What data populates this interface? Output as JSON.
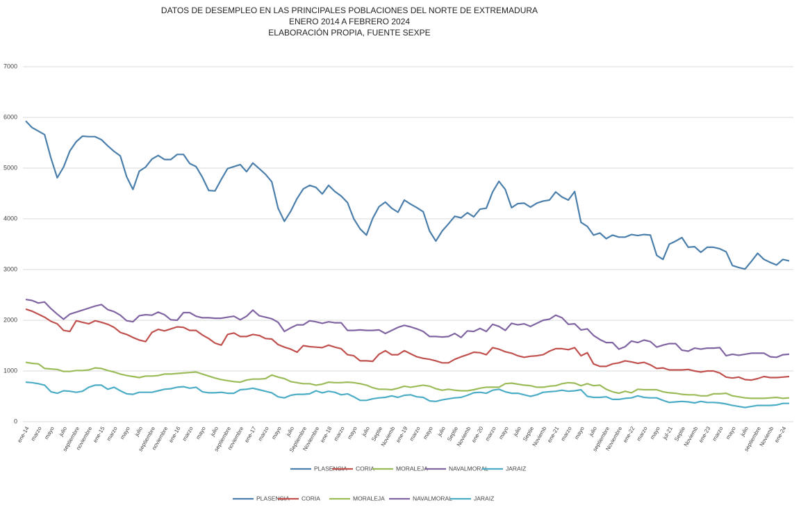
{
  "chart_data": {
    "type": "line",
    "title": "DATOS DE DESEMPLEO EN LAS PRINCIPALES POBLACIONES DEL NORTE DE EXTREMADURA",
    "subtitle": "ENERO 2014 A  FEBRERO  2024",
    "source": "ELABORACIÓN PROPIA, FUENTE SEXPE",
    "categories": [
      "ene-14",
      null,
      "marzo",
      null,
      "mayo",
      null,
      "julio",
      null,
      "septiembre",
      null,
      "noviembre",
      null,
      "ene-15",
      null,
      "marzo",
      null,
      "mayo",
      null,
      "julio",
      null,
      "septiembre",
      null,
      "noviembre",
      null,
      "ene-16",
      null,
      "marzo",
      null,
      "mayo",
      null,
      "julio",
      null,
      "septiembre",
      null,
      "noviembre",
      null,
      "ene-17",
      null,
      "marzo",
      null,
      "mayo",
      null,
      "julio",
      null,
      "Septiembre",
      null,
      "Noviembre",
      null,
      "ene-18",
      null,
      "marzo",
      null,
      "mayo",
      null,
      "julio",
      null,
      "Septie",
      null,
      "Noviemb",
      null,
      "ene-19",
      null,
      "marzo",
      null,
      "mayo",
      null,
      "julio",
      null,
      "Septie",
      null,
      "Noviemb",
      null,
      "ene-20",
      null,
      "marzo",
      null,
      "mayo",
      null,
      "julio",
      null,
      "Septie",
      null,
      "Noviemb",
      null,
      "ene-21",
      null,
      "marzo",
      null,
      "mayo",
      null,
      "julio",
      null,
      "septiembre",
      null,
      "Noviembre",
      null,
      "ene-22",
      null,
      "marzo",
      null,
      "mayo",
      null,
      "jul-21",
      null,
      "Septie",
      null,
      "Noviemb",
      null,
      "ene-23",
      null,
      "marzo",
      null,
      "mayo",
      null,
      "julio",
      null,
      "septiembre",
      null,
      "Noviemb",
      null,
      "ene-24",
      null
    ],
    "series": [
      {
        "name": "PLASENCIA",
        "color": "#4a7eab",
        "values": [
          5930,
          5800,
          5730,
          5660,
          5200,
          4810,
          5020,
          5340,
          5520,
          5630,
          5620,
          5620,
          5560,
          5440,
          5330,
          5240,
          4830,
          4580,
          4940,
          5020,
          5180,
          5250,
          5170,
          5170,
          5270,
          5270,
          5090,
          5030,
          4820,
          4560,
          4550,
          4780,
          4990,
          5030,
          5070,
          4930,
          5100,
          4990,
          4880,
          4730,
          4210,
          3950,
          4150,
          4400,
          4590,
          4660,
          4620,
          4490,
          4660,
          4540,
          4450,
          4320,
          4000,
          3800,
          3680,
          4010,
          4240,
          4330,
          4210,
          4130,
          4370,
          4290,
          4220,
          4140,
          3760,
          3560,
          3760,
          3900,
          4050,
          4020,
          4120,
          4040,
          4190,
          4210,
          4530,
          4740,
          4580,
          4220,
          4300,
          4310,
          4230,
          4310,
          4350,
          4370,
          4530,
          4430,
          4370,
          4540,
          3930,
          3850,
          3680,
          3720,
          3610,
          3680,
          3640,
          3640,
          3690,
          3670,
          3690,
          3680,
          3280,
          3200,
          3500,
          3560,
          3630,
          3440,
          3450,
          3340,
          3440,
          3440,
          3410,
          3350,
          3080,
          3040,
          3010,
          3160,
          3320,
          3200,
          3140,
          3090,
          3200,
          3170
        ]
      },
      {
        "name": "CORIA",
        "color": "#c0504d",
        "values": [
          2220,
          2180,
          2120,
          2060,
          1980,
          1930,
          1800,
          1780,
          1990,
          1960,
          1930,
          1990,
          1960,
          1920,
          1860,
          1760,
          1720,
          1660,
          1610,
          1580,
          1760,
          1820,
          1790,
          1830,
          1870,
          1860,
          1800,
          1800,
          1710,
          1640,
          1550,
          1510,
          1720,
          1750,
          1680,
          1680,
          1720,
          1700,
          1640,
          1630,
          1520,
          1470,
          1430,
          1370,
          1500,
          1480,
          1470,
          1460,
          1510,
          1470,
          1440,
          1320,
          1300,
          1200,
          1200,
          1190,
          1330,
          1400,
          1320,
          1320,
          1400,
          1340,
          1280,
          1250,
          1230,
          1200,
          1160,
          1160,
          1230,
          1280,
          1320,
          1370,
          1360,
          1320,
          1460,
          1430,
          1380,
          1350,
          1300,
          1270,
          1290,
          1300,
          1320,
          1390,
          1440,
          1440,
          1420,
          1460,
          1300,
          1360,
          1140,
          1090,
          1090,
          1140,
          1160,
          1200,
          1180,
          1150,
          1170,
          1120,
          1050,
          1060,
          1020,
          1020,
          1020,
          1030,
          1000,
          980,
          1000,
          1000,
          960,
          880,
          860,
          880,
          830,
          820,
          850,
          890,
          870,
          870,
          880,
          890
        ]
      },
      {
        "name": "MORALEJA",
        "color": "#9bbb59",
        "values": [
          1170,
          1150,
          1140,
          1050,
          1040,
          1030,
          990,
          990,
          1010,
          1010,
          1020,
          1060,
          1050,
          1010,
          980,
          940,
          910,
          890,
          870,
          900,
          900,
          910,
          940,
          940,
          950,
          960,
          970,
          980,
          940,
          900,
          860,
          830,
          810,
          790,
          780,
          820,
          840,
          840,
          850,
          920,
          880,
          850,
          790,
          770,
          750,
          750,
          720,
          740,
          780,
          770,
          770,
          780,
          770,
          750,
          720,
          670,
          640,
          640,
          630,
          660,
          700,
          680,
          700,
          720,
          700,
          650,
          620,
          640,
          620,
          610,
          610,
          630,
          660,
          680,
          680,
          680,
          750,
          760,
          740,
          720,
          710,
          680,
          680,
          700,
          710,
          750,
          770,
          760,
          710,
          750,
          710,
          720,
          640,
          590,
          560,
          600,
          570,
          640,
          630,
          630,
          630,
          590,
          570,
          560,
          540,
          530,
          530,
          510,
          510,
          550,
          550,
          560,
          510,
          490,
          470,
          460,
          460,
          460,
          470,
          480,
          460,
          470
        ]
      },
      {
        "name": "NAVALMORAL",
        "color": "#8064a2",
        "values": [
          2410,
          2390,
          2340,
          2360,
          2230,
          2120,
          2020,
          2120,
          2160,
          2200,
          2240,
          2280,
          2310,
          2210,
          2170,
          2100,
          1990,
          1970,
          2090,
          2110,
          2100,
          2160,
          2110,
          2010,
          2000,
          2150,
          2150,
          2080,
          2050,
          2050,
          2040,
          2040,
          2060,
          2080,
          2010,
          2080,
          2200,
          2090,
          2060,
          2030,
          1960,
          1780,
          1850,
          1910,
          1910,
          1990,
          1970,
          1940,
          1970,
          1950,
          1950,
          1800,
          1800,
          1810,
          1800,
          1800,
          1810,
          1740,
          1800,
          1860,
          1900,
          1870,
          1830,
          1780,
          1680,
          1680,
          1670,
          1680,
          1740,
          1660,
          1790,
          1780,
          1840,
          1780,
          1920,
          1880,
          1800,
          1940,
          1910,
          1930,
          1880,
          1940,
          2000,
          2020,
          2100,
          2050,
          1920,
          1930,
          1810,
          1830,
          1700,
          1620,
          1560,
          1560,
          1430,
          1480,
          1590,
          1560,
          1610,
          1580,
          1470,
          1510,
          1540,
          1540,
          1410,
          1390,
          1450,
          1430,
          1450,
          1450,
          1460,
          1300,
          1330,
          1310,
          1330,
          1350,
          1350,
          1350,
          1280,
          1270,
          1320,
          1330
        ]
      },
      {
        "name": "JARAIZ",
        "color": "#4bacc6",
        "values": [
          780,
          770,
          750,
          720,
          590,
          560,
          610,
          600,
          580,
          600,
          680,
          720,
          720,
          640,
          680,
          610,
          550,
          540,
          580,
          580,
          580,
          610,
          640,
          650,
          680,
          690,
          660,
          680,
          590,
          570,
          570,
          580,
          560,
          560,
          630,
          640,
          660,
          630,
          600,
          570,
          490,
          470,
          520,
          540,
          540,
          550,
          610,
          570,
          600,
          580,
          530,
          550,
          490,
          420,
          420,
          450,
          470,
          480,
          510,
          480,
          520,
          530,
          490,
          480,
          410,
          400,
          430,
          450,
          470,
          480,
          520,
          570,
          580,
          560,
          620,
          640,
          590,
          560,
          560,
          530,
          500,
          530,
          580,
          590,
          600,
          620,
          600,
          610,
          630,
          500,
          480,
          480,
          490,
          440,
          440,
          460,
          470,
          510,
          480,
          470,
          470,
          420,
          380,
          390,
          400,
          390,
          370,
          400,
          380,
          380,
          370,
          350,
          320,
          300,
          280,
          300,
          320,
          320,
          320,
          330,
          360,
          360
        ]
      }
    ],
    "ylim": [
      0,
      7000
    ],
    "yticks": [
      0,
      1000,
      2000,
      3000,
      4000,
      5000,
      6000,
      7000
    ],
    "grid": true,
    "legend": "bottom"
  }
}
